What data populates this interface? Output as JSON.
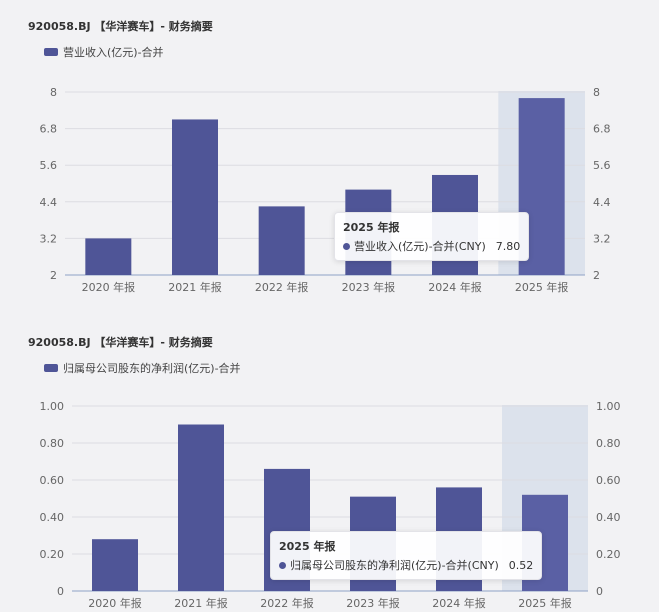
{
  "colors": {
    "bar": "#4f5597",
    "bar_highlight": "#5a60a4",
    "highlight_band": "#d4dcea",
    "grid": "#dcdce2",
    "axis": "#8fa3c6"
  },
  "chart_data": [
    {
      "type": "bar",
      "title": "920058.BJ 【华洋赛车】- 财务摘要",
      "legend": "营业收入(亿元)-合并",
      "legend_position": "top-left",
      "categories": [
        "2020 年报",
        "2021 年报",
        "2022 年报",
        "2023 年报",
        "2024 年报",
        "2025 年报"
      ],
      "values": [
        3.2,
        7.1,
        4.25,
        4.8,
        5.28,
        7.8
      ],
      "ylim": [
        2,
        8
      ],
      "yticks": [
        "2",
        "3.2",
        "4.4",
        "5.6",
        "6.8",
        "8"
      ],
      "highlight_index": 5,
      "tooltip": {
        "title": "2025 年报",
        "series": "营业收入(亿元)-合并(CNY)",
        "value": "7.80"
      }
    },
    {
      "type": "bar",
      "title": "920058.BJ 【华洋赛车】- 财务摘要",
      "legend": "归属母公司股东的净利润(亿元)-合并",
      "legend_position": "top-left",
      "categories": [
        "2020 年报",
        "2021 年报",
        "2022 年报",
        "2023 年报",
        "2024 年报",
        "2025 年报"
      ],
      "values": [
        0.28,
        0.9,
        0.66,
        0.51,
        0.56,
        0.52
      ],
      "ylim": [
        0,
        1.0
      ],
      "yticks": [
        "0",
        "0.20",
        "0.40",
        "0.60",
        "0.80",
        "1.00"
      ],
      "highlight_index": 5,
      "tooltip": {
        "title": "2025 年报",
        "series": "归属母公司股东的净利润(亿元)-合并(CNY)",
        "value": "0.52"
      }
    }
  ]
}
